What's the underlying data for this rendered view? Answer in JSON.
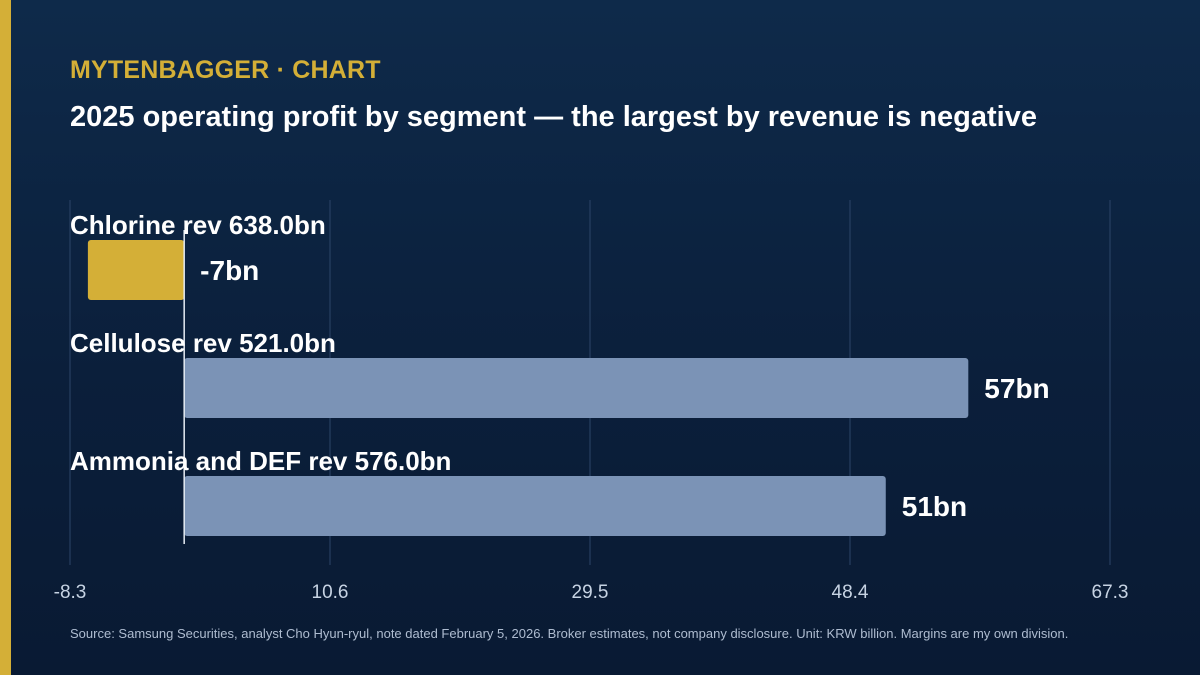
{
  "header": {
    "brand": "MYTENBAGGER · CHART",
    "title": "2025 operating profit by segment — the largest by revenue is negative"
  },
  "footer": {
    "source": "Source: Samsung Securities, analyst Cho Hyun-ryul, note dated February 5, 2026. Broker estimates, not company disclosure. Unit: KRW billion. Margins are my own division."
  },
  "colors": {
    "negative": "#d4af37",
    "positive": "#7b93b6",
    "grid": "#2c4568",
    "axis": "#e6ecf4",
    "accent": "#d4af37"
  },
  "chart_data": {
    "type": "bar",
    "orientation": "horizontal",
    "title": "2025 operating profit by segment — the largest by revenue is negative",
    "categories": [
      "Chlorine rev 638.0bn",
      "Cellulose rev 521.0bn",
      "Ammonia and DEF rev 576.0bn"
    ],
    "values": [
      -7,
      57,
      51
    ],
    "value_labels": [
      "-7bn",
      "57bn",
      "51bn"
    ],
    "xlim": [
      -8.3,
      67.3
    ],
    "x_ticks": [
      -8.3,
      10.6,
      29.5,
      48.4,
      67.3
    ],
    "x_tick_labels": [
      "-8.3",
      "10.6",
      "29.5",
      "48.4",
      "67.3"
    ],
    "grid": true,
    "legend": "none"
  }
}
